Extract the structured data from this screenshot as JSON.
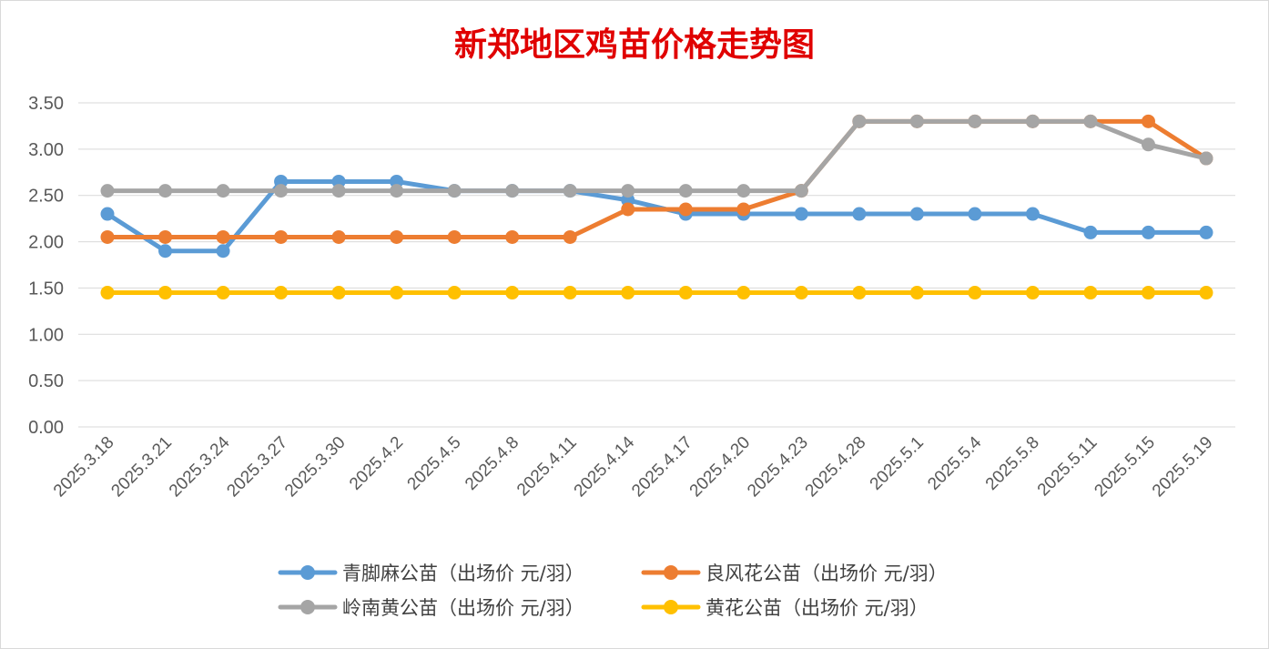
{
  "chart_data": {
    "type": "line",
    "title": "新郑地区鸡苗价格走势图",
    "xlabel": "",
    "ylabel": "",
    "ylim": [
      0,
      3.5
    ],
    "yticks": [
      "0.00",
      "0.50",
      "1.00",
      "1.50",
      "2.00",
      "2.50",
      "3.00",
      "3.50"
    ],
    "grid": true,
    "legend_position": "bottom",
    "categories": [
      "2025.3.18",
      "2025.3.21",
      "2025.3.24",
      "2025.3.27",
      "2025.3.30",
      "2025.4.2",
      "2025.4.5",
      "2025.4.8",
      "2025.4.11",
      "2025.4.14",
      "2025.4.17",
      "2025.4.20",
      "2025.4.23",
      "2025.4.28",
      "2025.5.1",
      "2025.5.4",
      "2025.5.8",
      "2025.5.11",
      "2025.5.15",
      "2025.5.19"
    ],
    "series": [
      {
        "name": "青脚麻公苗（出场价 元/羽）",
        "color": "#5B9BD5",
        "values": [
          2.3,
          1.9,
          1.9,
          2.65,
          2.65,
          2.65,
          2.55,
          2.55,
          2.55,
          2.45,
          2.3,
          2.3,
          2.3,
          2.3,
          2.3,
          2.3,
          2.3,
          2.1,
          2.1,
          2.1
        ]
      },
      {
        "name": "良风花公苗（出场价 元/羽）",
        "color": "#ED7D31",
        "values": [
          2.05,
          2.05,
          2.05,
          2.05,
          2.05,
          2.05,
          2.05,
          2.05,
          2.05,
          2.35,
          2.35,
          2.35,
          2.55,
          3.3,
          3.3,
          3.3,
          3.3,
          3.3,
          3.3,
          2.9
        ]
      },
      {
        "name": "岭南黄公苗（出场价 元/羽）",
        "color": "#A5A5A5",
        "values": [
          2.55,
          2.55,
          2.55,
          2.55,
          2.55,
          2.55,
          2.55,
          2.55,
          2.55,
          2.55,
          2.55,
          2.55,
          2.55,
          3.3,
          3.3,
          3.3,
          3.3,
          3.3,
          3.05,
          2.9
        ]
      },
      {
        "name": "黄花公苗（出场价 元/羽）",
        "color": "#FFC000",
        "values": [
          1.45,
          1.45,
          1.45,
          1.45,
          1.45,
          1.45,
          1.45,
          1.45,
          1.45,
          1.45,
          1.45,
          1.45,
          1.45,
          1.45,
          1.45,
          1.45,
          1.45,
          1.45,
          1.45,
          1.45
        ]
      }
    ]
  }
}
